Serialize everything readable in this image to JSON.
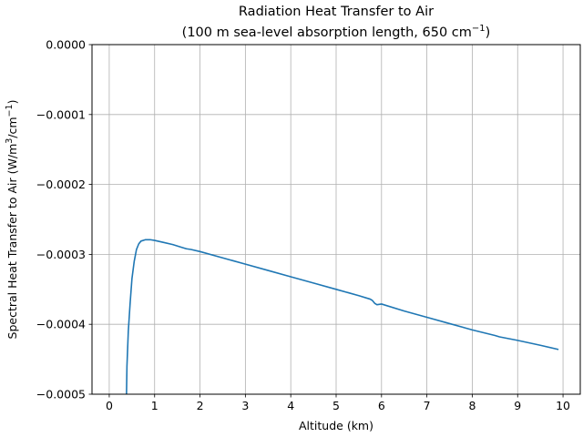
{
  "chart_data": {
    "type": "line",
    "title_line1": "Radiation Heat Transfer to Air",
    "title_line2_prefix": "(100 m sea-level absorption length, 650 cm",
    "title_line2_sup": "−1",
    "title_line2_suffix": ")",
    "xlabel": "Altitude (km)",
    "ylabel_prefix": "Spectral Heat Transfer to Air (W/m",
    "ylabel_sup1": "3",
    "ylabel_mid": "/cm",
    "ylabel_sup2": "−1",
    "ylabel_suffix": ")",
    "xlim": [
      -0.38,
      10.38
    ],
    "ylim": [
      -0.0005,
      0.0
    ],
    "grid": true,
    "x_ticks": [
      0,
      1,
      2,
      3,
      4,
      5,
      6,
      7,
      8,
      9,
      10
    ],
    "x_tick_labels": [
      "0",
      "1",
      "2",
      "3",
      "4",
      "5",
      "6",
      "7",
      "8",
      "9",
      "10"
    ],
    "y_ticks": [
      0.0,
      -0.0001,
      -0.0002,
      -0.0003,
      -0.0004,
      -0.0005
    ],
    "y_tick_labels": [
      "0.0000",
      "−0.0001",
      "−0.0002",
      "−0.0003",
      "−0.0004",
      "−0.0005"
    ],
    "series": [
      {
        "name": "heat transfer",
        "color": "#1f77b4",
        "x": [
          0.38,
          0.39,
          0.42,
          0.46,
          0.5,
          0.55,
          0.6,
          0.65,
          0.7,
          0.8,
          0.9,
          1.0,
          1.2,
          1.4,
          1.6,
          1.7,
          1.8,
          2.0,
          2.5,
          3.0,
          3.5,
          4.0,
          4.5,
          5.0,
          5.5,
          5.75,
          5.8,
          5.85,
          5.9,
          6.0,
          6.5,
          7.0,
          7.5,
          8.0,
          8.5,
          8.6,
          9.0,
          9.5,
          9.9
        ],
        "y": [
          -0.0005,
          -0.00046,
          -0.00041,
          -0.00037,
          -0.000335,
          -0.00031,
          -0.000293,
          -0.000285,
          -0.000281,
          -0.000279,
          -0.000279,
          -0.00028,
          -0.000283,
          -0.000286,
          -0.00029,
          -0.000292,
          -0.000293,
          -0.000296,
          -0.000305,
          -0.000314,
          -0.000323,
          -0.000332,
          -0.000341,
          -0.00035,
          -0.000359,
          -0.000364,
          -0.000366,
          -0.00037,
          -0.000372,
          -0.000371,
          -0.000381,
          -0.00039,
          -0.000399,
          -0.000408,
          -0.000416,
          -0.000418,
          -0.000423,
          -0.00043,
          -0.000436
        ]
      }
    ]
  }
}
